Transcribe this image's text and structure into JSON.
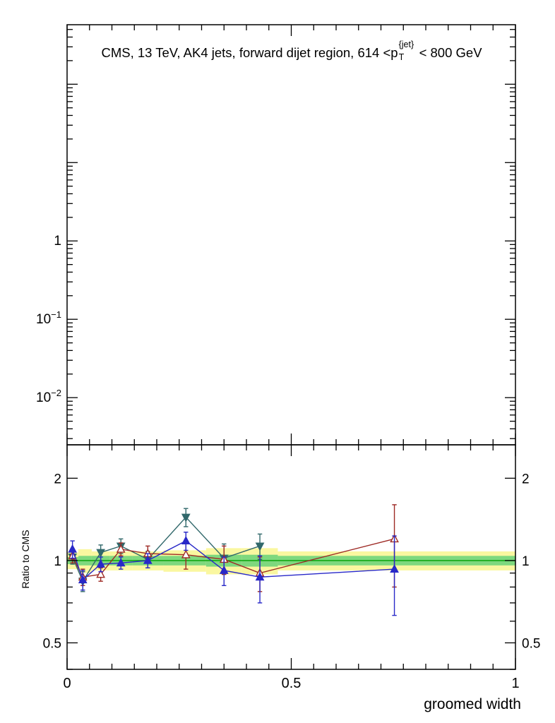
{
  "figure_title": {
    "prefix": "CMS, 13 TeV, AK4 jets, forward dijet region, 614 <p",
    "sub": "T",
    "sup": "{jet}",
    "suffix": "< 800 GeV"
  },
  "chart_data": {
    "type": "line",
    "title": "CMS, 13 TeV, AK4 jets, forward dijet region, 614 <p_T^{jet}< 800 GeV",
    "xlabel": "groomed width",
    "xlim": [
      0,
      1
    ],
    "xticks": [
      {
        "v": 0,
        "label": "0"
      },
      {
        "v": 0.5,
        "label": "0.5"
      },
      {
        "v": 1,
        "label": "1"
      }
    ],
    "x_minor_step": 0.05,
    "panels": [
      {
        "id": "main",
        "yscale": "log",
        "ylim": [
          0.0025,
          575
        ],
        "yticks": [
          {
            "v": 1,
            "label": "1"
          },
          {
            "v": 0.1,
            "label": "10^{-1}"
          },
          {
            "v": 0.01,
            "label": "10^{-2}"
          }
        ],
        "series": []
      },
      {
        "id": "ratio",
        "ylabel": "Ratio to CMS",
        "yscale": "log",
        "ylim": [
          0.4,
          2.65
        ],
        "yticks": [
          {
            "v": 2,
            "label": "2"
          },
          {
            "v": 1,
            "label": "1"
          },
          {
            "v": 0.5,
            "label": "0.5"
          }
        ],
        "yticks_minor": [
          0.4,
          0.6,
          0.7,
          0.8,
          0.9
        ],
        "labels_both_sides": true,
        "bands": {
          "x_edges": [
            0,
            0.025,
            0.055,
            0.095,
            0.145,
            0.215,
            0.31,
            0.39,
            0.47,
            1.0
          ],
          "outer": {
            "color": "#faf7a0",
            "lo": [
              0.93,
              0.9,
              0.92,
              0.92,
              0.92,
              0.91,
              0.89,
              0.89,
              0.92
            ],
            "hi": [
              1.07,
              1.1,
              1.08,
              1.08,
              1.08,
              1.09,
              1.11,
              1.11,
              1.08
            ]
          },
          "inner": {
            "color": "#7ed87e",
            "lo": [
              0.97,
              0.96,
              0.96,
              0.96,
              0.96,
              0.96,
              0.95,
              0.95,
              0.96
            ],
            "hi": [
              1.03,
              1.04,
              1.04,
              1.04,
              1.04,
              1.04,
              1.05,
              1.05,
              1.04
            ]
          },
          "center_line": {
            "value": 1,
            "color": "#00a000"
          }
        },
        "series": [
          {
            "name": "teal-filled-down-triangles",
            "marker": "triangle-down",
            "open": false,
            "color": "#31686b",
            "x": [
              0.012,
              0.035,
              0.075,
              0.12,
              0.18,
              0.265,
              0.35,
              0.43
            ],
            "y": [
              1.03,
              0.84,
              1.07,
              1.13,
              1.01,
              1.44,
              1.02,
              1.13
            ],
            "yerr": [
              0.06,
              0.07,
              0.07,
              0.07,
              0.07,
              0.11,
              0.13,
              0.12
            ]
          },
          {
            "name": "red-open-up-triangles",
            "marker": "triangle-up",
            "open": true,
            "color": "#9e2a25",
            "x": [
              0.012,
              0.035,
              0.075,
              0.12,
              0.18,
              0.265,
              0.35,
              0.43,
              0.73
            ],
            "y": [
              1.04,
              0.87,
              0.89,
              1.1,
              1.06,
              1.05,
              1.01,
              0.9,
              1.2
            ],
            "yerr": [
              0.06,
              0.06,
              0.05,
              0.06,
              0.07,
              0.12,
              0.12,
              0.13,
              0.4
            ]
          },
          {
            "name": "blue-filled-up-triangles",
            "marker": "triangle-up",
            "open": false,
            "color": "#2828c8",
            "x": [
              0.012,
              0.035,
              0.075,
              0.12,
              0.18,
              0.265,
              0.35,
              0.43,
              0.73
            ],
            "y": [
              1.1,
              0.85,
              0.97,
              0.98,
              1.0,
              1.18,
              0.92,
              0.87,
              0.93
            ],
            "yerr": [
              0.08,
              0.07,
              0.06,
              0.05,
              0.06,
              0.09,
              0.11,
              0.17,
              0.3
            ]
          }
        ]
      }
    ]
  }
}
